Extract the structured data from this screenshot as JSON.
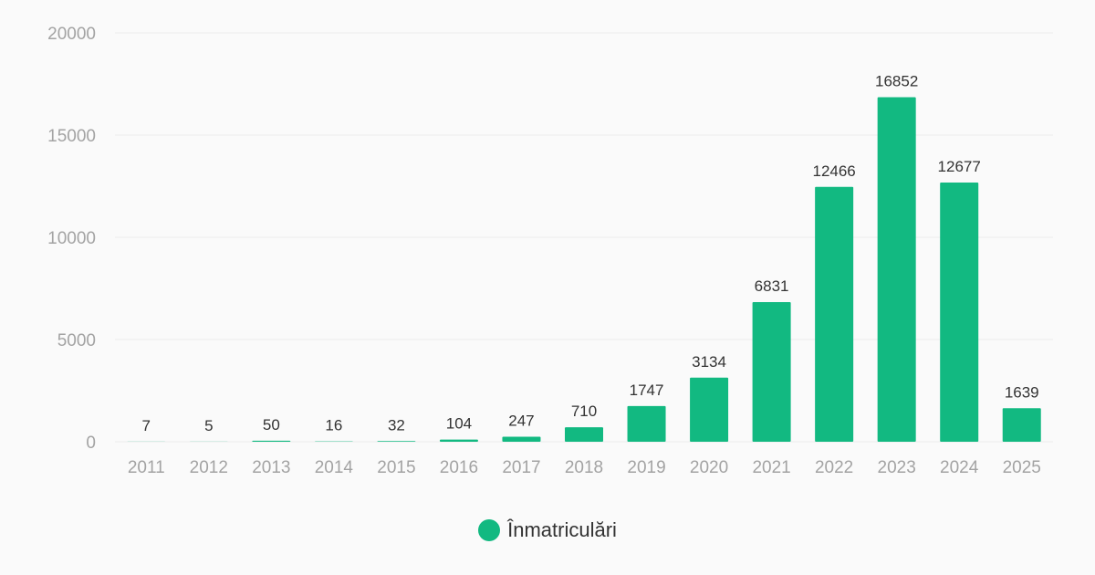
{
  "chart_data": {
    "type": "bar",
    "categories": [
      "2011",
      "2012",
      "2013",
      "2014",
      "2015",
      "2016",
      "2017",
      "2018",
      "2019",
      "2020",
      "2021",
      "2022",
      "2023",
      "2024",
      "2025"
    ],
    "series": [
      {
        "name": "Înmatriculări",
        "values": [
          7,
          5,
          50,
          16,
          32,
          104,
          247,
          710,
          1747,
          3134,
          6831,
          12466,
          16852,
          12677,
          1639
        ]
      }
    ],
    "ylim": [
      0,
      20000
    ],
    "yticks": [
      0,
      5000,
      10000,
      15000,
      20000
    ],
    "grid": true,
    "legend_position": "bottom-center",
    "data_labels": true,
    "colors": {
      "bar": "#12b981",
      "grid": "#ececec",
      "tick_text": "#a3a3a3",
      "label_text": "#333333",
      "background": "#fafafa"
    }
  }
}
